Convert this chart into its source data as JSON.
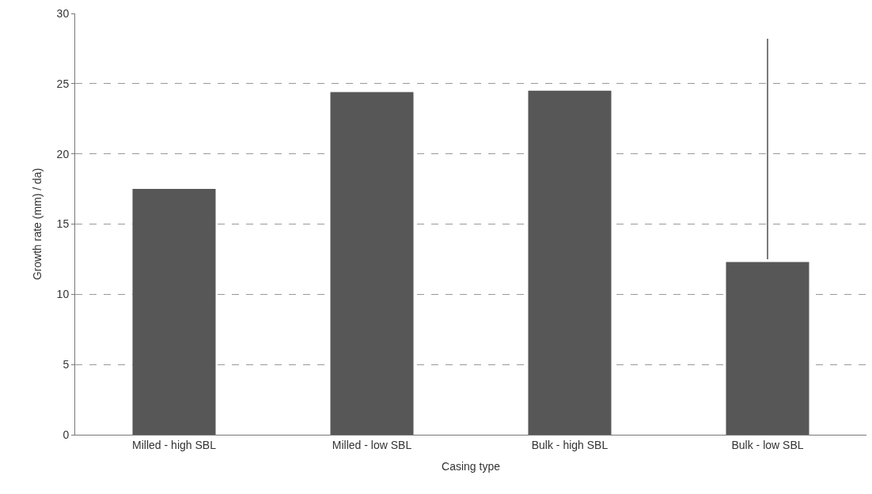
{
  "chart_data": {
    "type": "bar",
    "xlabel": "Casing type",
    "ylabel": "Growth rate (mm) / da)",
    "categories": [
      "Milled - high SBL",
      "Milled - low SBL",
      "Bulk - high SBL",
      "Bulk - low SBL"
    ],
    "series": [
      {
        "color": "#575757",
        "values": [
          17.5,
          24.4,
          24.5,
          12.3
        ]
      },
      {
        "type": "line",
        "color": "#333333",
        "x": [
          "Bulk - low SBL",
          "Bulk - low SBL"
        ],
        "values": [
          12.5,
          28.2
        ]
      }
    ],
    "ylim": [
      0,
      30
    ],
    "yticks": [
      0,
      5,
      10,
      15,
      20,
      25,
      30
    ],
    "grid": "y"
  }
}
